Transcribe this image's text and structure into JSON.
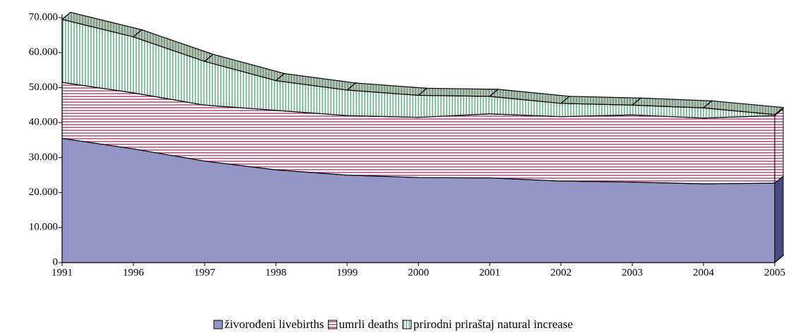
{
  "chart_data": {
    "type": "area",
    "categories": [
      "1991",
      "1996",
      "1997",
      "1998",
      "1999",
      "2000",
      "2001",
      "2002",
      "2003",
      "2004",
      "2005"
    ],
    "series": [
      {
        "name": "živorođeni livebirths",
        "color": "#9595c8",
        "values": [
          35500,
          32500,
          29000,
          26500,
          25000,
          24300,
          24200,
          23300,
          23000,
          22500,
          22700
        ]
      },
      {
        "name": "umrli deaths",
        "color": "#993366",
        "values": [
          16000,
          16000,
          16000,
          17000,
          17000,
          17200,
          18300,
          18400,
          19200,
          18800,
          19300
        ]
      },
      {
        "name": "prirodni priraštaj natural increase",
        "color": "#339966",
        "values": [
          18000,
          16000,
          12500,
          8500,
          7300,
          6300,
          5000,
          3800,
          2800,
          2900,
          300
        ]
      }
    ],
    "stacked": true,
    "ylim": [
      0,
      70000
    ],
    "yticks": [
      0,
      {
        "value": 10000,
        "label": "10.000"
      },
      {
        "value": 20000,
        "label": "20.000"
      },
      {
        "value": 30000,
        "label": "30.000"
      },
      {
        "value": 40000,
        "label": "40.000"
      },
      {
        "value": 50000,
        "label": "50.000"
      },
      {
        "value": 60000,
        "label": "60.000"
      },
      {
        "value": 70000,
        "label": "70.000"
      }
    ],
    "legend": "bottom"
  }
}
